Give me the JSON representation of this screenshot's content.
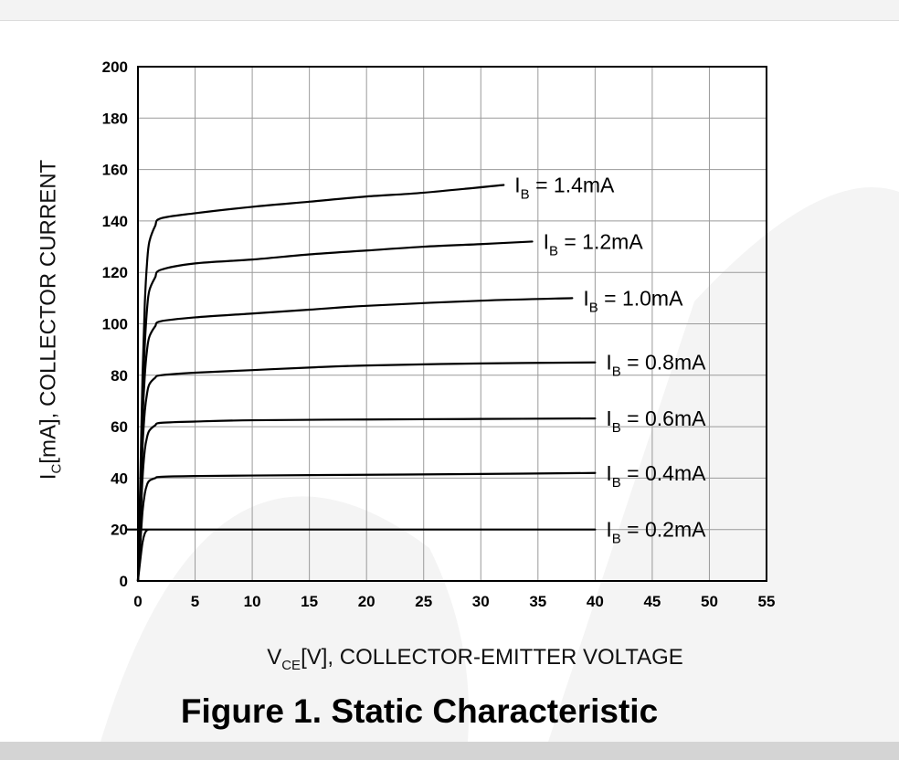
{
  "figure_title": "Figure 1. Static Characteristic",
  "chart_data": {
    "type": "line",
    "title": "",
    "xlabel": {
      "main": "V",
      "sub": "CE",
      "rest": "[V], COLLECTOR-EMITTER VOLTAGE"
    },
    "ylabel": {
      "main": "I",
      "sub": "C",
      "rest": "[mA], COLLECTOR CURRENT"
    },
    "xlim": [
      0,
      55
    ],
    "ylim": [
      0,
      200
    ],
    "xticks": [
      0,
      5,
      10,
      15,
      20,
      25,
      30,
      35,
      40,
      45,
      50,
      55
    ],
    "yticks": [
      0,
      20,
      40,
      60,
      80,
      100,
      120,
      140,
      160,
      180,
      200
    ],
    "grid": true,
    "series": [
      {
        "name": "I_B = 0.2mA",
        "label": {
          "main": "I",
          "sub": "B",
          "rest": " = 0.2mA"
        },
        "x": [
          0,
          0.2,
          0.4,
          0.6,
          0.8,
          1.0,
          1.5,
          2,
          40
        ],
        "y": [
          0,
          8,
          15,
          18.5,
          19.8,
          20,
          20,
          20,
          20
        ]
      },
      {
        "name": "I_B = 0.4mA",
        "label": {
          "main": "I",
          "sub": "B",
          "rest": " = 0.4mA"
        },
        "x": [
          0,
          0.2,
          0.4,
          0.6,
          0.8,
          1.0,
          1.5,
          2,
          5,
          10,
          20,
          30,
          40
        ],
        "y": [
          0,
          14,
          27,
          34,
          37.5,
          39,
          40,
          40.5,
          40.8,
          41,
          41.3,
          41.6,
          42
        ]
      },
      {
        "name": "I_B = 0.6mA",
        "label": {
          "main": "I",
          "sub": "B",
          "rest": " = 0.6mA"
        },
        "x": [
          0,
          0.2,
          0.4,
          0.6,
          0.8,
          1.0,
          1.5,
          2,
          5,
          10,
          20,
          30,
          40
        ],
        "y": [
          0,
          20,
          40,
          51,
          56,
          58.5,
          60.5,
          61.5,
          62,
          62.5,
          62.8,
          63,
          63.2
        ]
      },
      {
        "name": "I_B = 0.8mA",
        "label": {
          "main": "I",
          "sub": "B",
          "rest": " = 0.8mA"
        },
        "x": [
          0,
          0.2,
          0.4,
          0.6,
          0.8,
          1.0,
          1.5,
          2,
          5,
          10,
          15,
          20,
          30,
          40
        ],
        "y": [
          0,
          26,
          52,
          66,
          73,
          76.5,
          79,
          80,
          81,
          82,
          83,
          83.8,
          84.6,
          85
        ]
      },
      {
        "name": "I_B = 1.0mA",
        "label": {
          "main": "I",
          "sub": "B",
          "rest": " = 1.0mA"
        },
        "x": [
          0,
          0.2,
          0.4,
          0.6,
          0.8,
          1.0,
          1.5,
          2,
          5,
          10,
          15,
          20,
          30,
          38
        ],
        "y": [
          0,
          30,
          62,
          80,
          90,
          95,
          99,
          101,
          102.5,
          104,
          105.5,
          107,
          109,
          110
        ]
      },
      {
        "name": "I_B = 1.2mA",
        "label": {
          "main": "I",
          "sub": "B",
          "rest": " = 1.2mA"
        },
        "x": [
          0,
          0.2,
          0.4,
          0.6,
          0.8,
          1.0,
          1.5,
          2,
          5,
          10,
          15,
          20,
          25,
          30,
          34.5
        ],
        "y": [
          0,
          34,
          70,
          92,
          106,
          113,
          118,
          121,
          123.5,
          125,
          127,
          128.5,
          130,
          131,
          132
        ]
      },
      {
        "name": "I_B = 1.4mA",
        "label": {
          "main": "I",
          "sub": "B",
          "rest": " = 1.4mA"
        },
        "x": [
          0,
          0.2,
          0.4,
          0.6,
          0.8,
          1.0,
          1.5,
          2,
          5,
          10,
          15,
          20,
          25,
          32
        ],
        "y": [
          0,
          38,
          80,
          108,
          124,
          132,
          138,
          141,
          143,
          145.5,
          147.5,
          149.5,
          151,
          154
        ]
      }
    ]
  }
}
